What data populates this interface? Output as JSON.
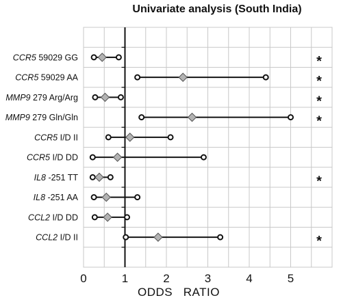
{
  "chart_data": {
    "type": "forest",
    "title": "Univariate analysis (South India)",
    "xlabel": "ODDS   RATIO",
    "xlim": [
      0,
      6
    ],
    "xticks": [
      0,
      1,
      2,
      3,
      4,
      5
    ],
    "reference_line": 1,
    "grid": true,
    "rows": [
      {
        "gene": "CCR5",
        "rest": " 59029 GG",
        "lo": 0.25,
        "or": 0.45,
        "hi": 0.85,
        "significant": true
      },
      {
        "gene": "CCR5",
        "rest": " 59029 AA",
        "lo": 1.3,
        "or": 2.4,
        "hi": 4.4,
        "significant": true
      },
      {
        "gene": "MMP9",
        "rest": " 279 Arg/Arg",
        "lo": 0.28,
        "or": 0.52,
        "hi": 0.9,
        "significant": true
      },
      {
        "gene": "MMP9",
        "rest": " 279 Gln/Gln",
        "lo": 1.4,
        "or": 2.62,
        "hi": 5.0,
        "significant": true
      },
      {
        "gene": "CCR5",
        "rest": " I/D II",
        "lo": 0.6,
        "or": 1.12,
        "hi": 2.1,
        "significant": false
      },
      {
        "gene": "CCR5",
        "rest": " I/D DD",
        "lo": 0.22,
        "or": 0.82,
        "hi": 2.9,
        "significant": false
      },
      {
        "gene": "IL8",
        "rest": " -251 TT",
        "lo": 0.22,
        "or": 0.38,
        "hi": 0.65,
        "significant": true
      },
      {
        "gene": "IL8",
        "rest": " -251 AA",
        "lo": 0.25,
        "or": 0.55,
        "hi": 1.3,
        "significant": false
      },
      {
        "gene": "CCL2",
        "rest": " I/D DD",
        "lo": 0.27,
        "or": 0.58,
        "hi": 1.05,
        "significant": false
      },
      {
        "gene": "CCL2",
        "rest": " I/D II",
        "lo": 1.02,
        "or": 1.8,
        "hi": 3.3,
        "significant": true
      }
    ],
    "significance_marker": "*",
    "colors": {
      "diamond": "#b3b3b3",
      "grid": "#c8c8c8",
      "line": "#111111"
    }
  }
}
